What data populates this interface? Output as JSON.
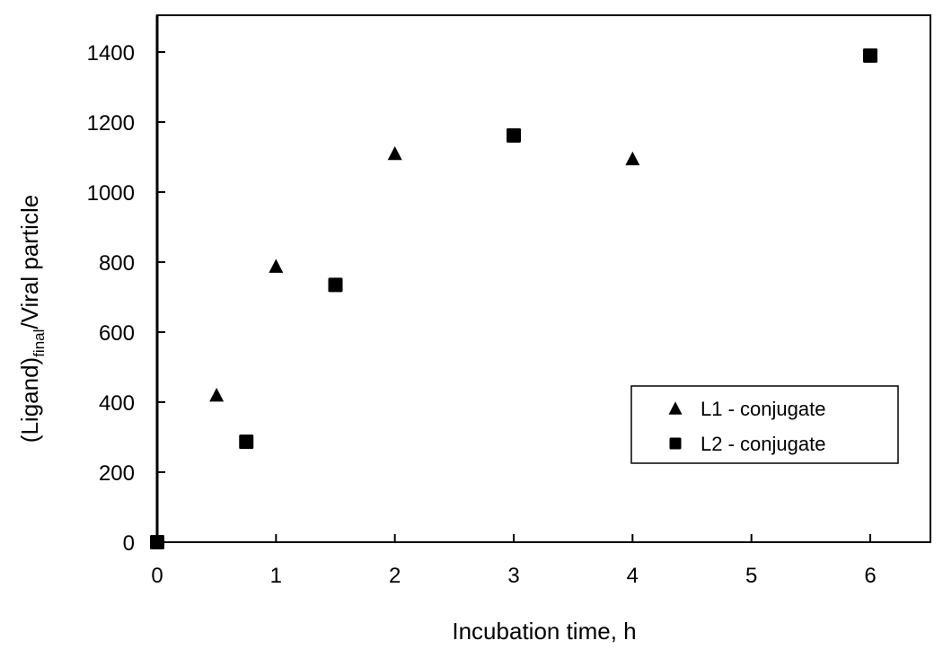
{
  "chart_data": {
    "type": "scatter",
    "title": "",
    "xlabel": "Incubation time, h",
    "ylabel": {
      "main": "(Ligand)",
      "subscript": "final",
      "rest": "/Viral particle"
    },
    "xlim": [
      0,
      6.5
    ],
    "ylim": [
      0,
      1500
    ],
    "x_ticks": [
      0,
      1,
      2,
      3,
      4,
      5,
      6
    ],
    "y_ticks": [
      0,
      200,
      400,
      600,
      800,
      1000,
      1200,
      1400
    ],
    "grid": false,
    "legend_position": "lower right (inside plot)",
    "series": [
      {
        "name": "L1 - conjugate",
        "marker": "triangle",
        "color": "#000000",
        "x": [
          0.5,
          1,
          1.5,
          2,
          4
        ],
        "y": [
          420,
          788,
          735,
          1110,
          1095
        ]
      },
      {
        "name": "L2 - conjugate",
        "marker": "square",
        "color": "#000000",
        "x": [
          0,
          0.75,
          1.5,
          3,
          6
        ],
        "y": [
          0,
          287,
          735,
          1162,
          1390
        ]
      }
    ]
  }
}
